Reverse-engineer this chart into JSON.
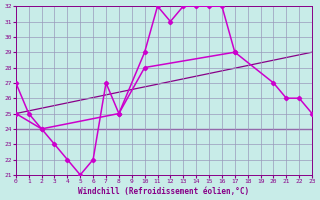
{
  "xlabel": "Windchill (Refroidissement éolien,°C)",
  "background_color": "#c8ece8",
  "grid_color": "#9999bb",
  "xlim": [
    0,
    23
  ],
  "ylim": [
    21,
    32
  ],
  "yticks": [
    21,
    22,
    23,
    24,
    25,
    26,
    27,
    28,
    29,
    30,
    31,
    32
  ],
  "xticks": [
    0,
    1,
    2,
    3,
    4,
    5,
    6,
    7,
    8,
    9,
    10,
    11,
    12,
    13,
    14,
    15,
    16,
    17,
    18,
    19,
    20,
    21,
    22,
    23
  ],
  "line1_x": [
    0,
    1,
    2,
    3,
    4,
    5,
    6,
    7,
    8,
    10,
    11,
    12,
    13,
    14,
    15,
    16,
    17
  ],
  "line1_y": [
    27,
    25,
    24,
    23,
    22,
    21,
    22,
    27,
    25,
    29,
    32,
    31,
    32,
    32,
    32,
    32,
    29
  ],
  "line2_x": [
    0,
    2,
    8,
    10,
    17,
    20,
    21,
    22,
    23
  ],
  "line2_y": [
    25,
    24,
    25,
    28,
    29,
    27,
    26,
    26,
    25
  ],
  "line3_x": [
    0,
    23
  ],
  "line3_y": [
    25,
    29
  ],
  "line4_x": [
    0,
    17,
    23
  ],
  "line4_y": [
    24,
    24,
    24
  ],
  "lc1": "#cc00cc",
  "lc2": "#cc00cc",
  "lc3": "#880088",
  "lc4": "#880088",
  "tick_color": "#880088",
  "label_color": "#880088"
}
